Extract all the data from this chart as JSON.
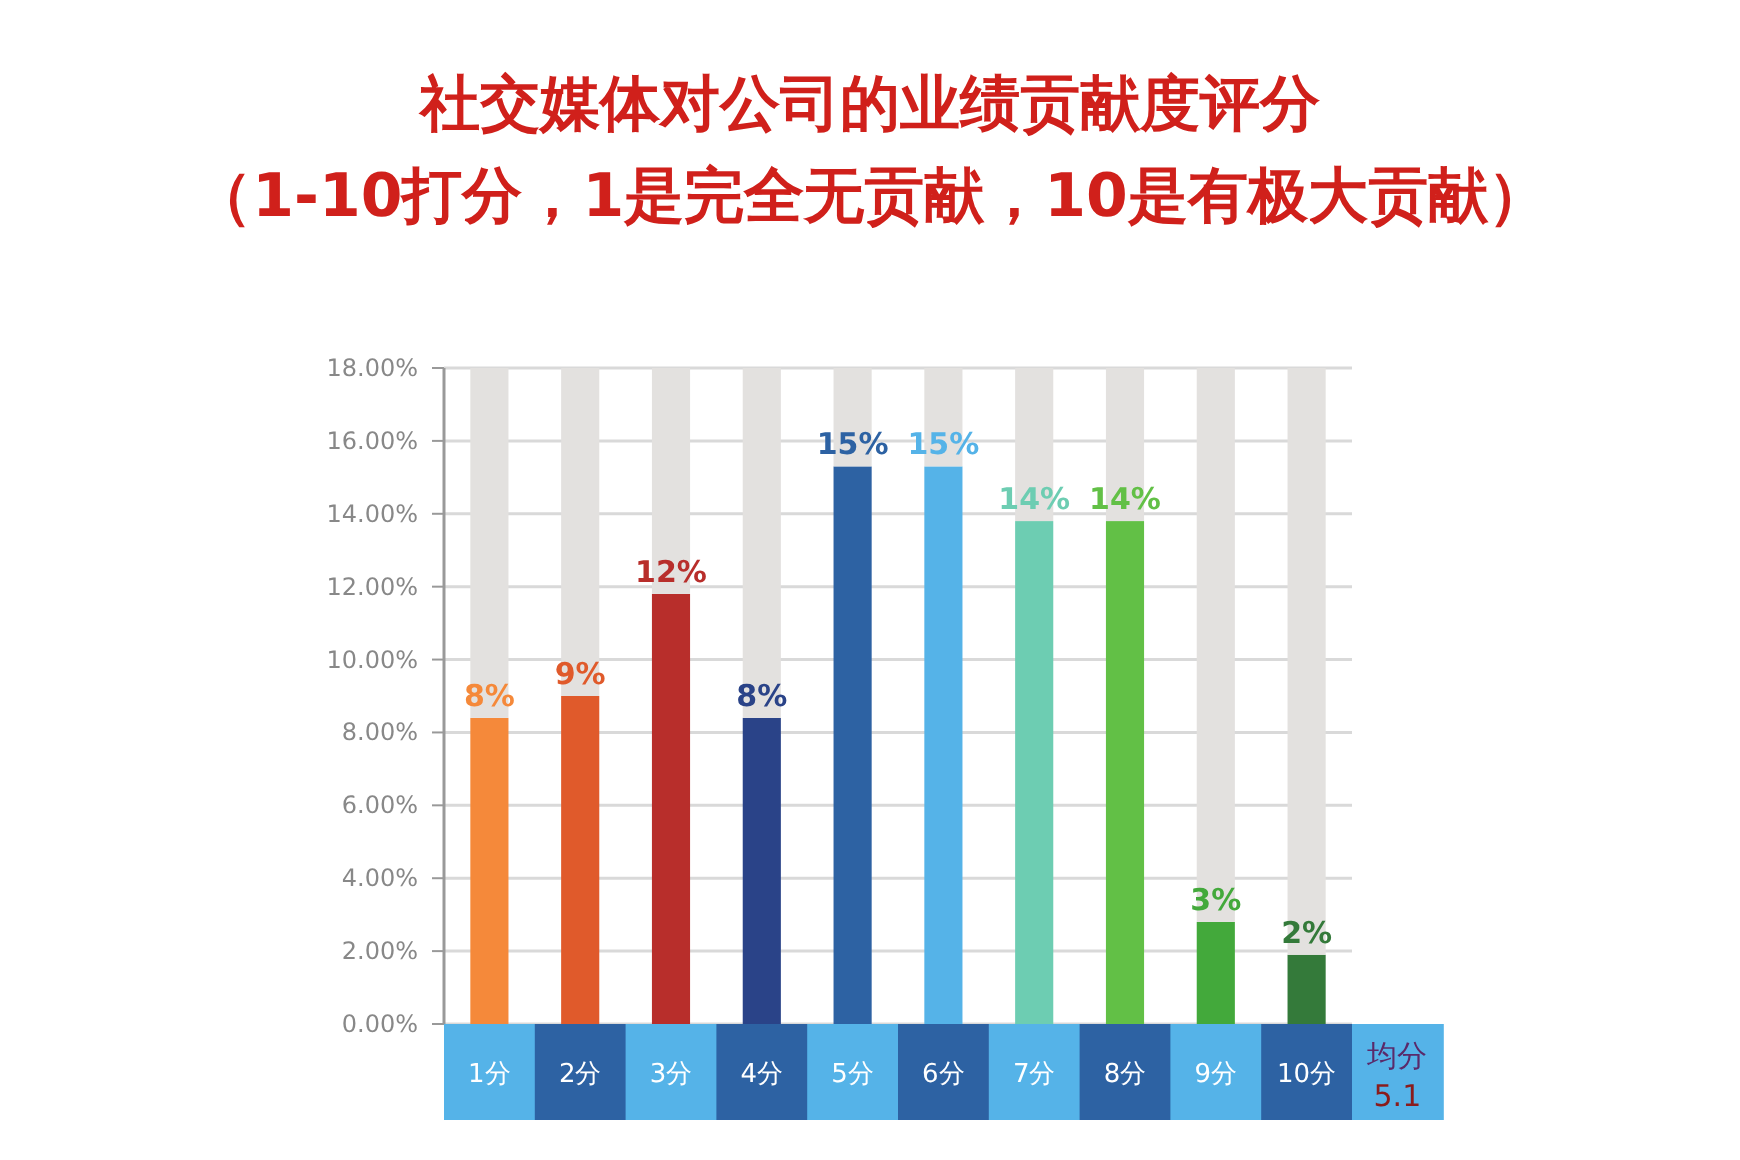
{
  "chart_data": {
    "type": "bar",
    "title": "社交媒体对公司的业绩贡献度评分",
    "subtitle": "（1-10打分，1是完全无贡献，10是有极大贡献）",
    "categories": [
      "1分",
      "2分",
      "3分",
      "4分",
      "5分",
      "6分",
      "7分",
      "8分",
      "9分",
      "10分"
    ],
    "stacked": true,
    "series": [
      {
        "colors": [
          "#f5893a",
          "#e05a2b",
          "#b82e2b",
          "#2a4388",
          "#2d62a3",
          "#55b3e8",
          "#6dcdb2",
          "#62c046",
          "#43a93b",
          "#347a3a"
        ],
        "values": [
          8.4,
          9.0,
          11.8,
          8.4,
          15.3,
          15.3,
          13.8,
          13.8,
          2.8,
          1.9
        ],
        "value_labels": [
          "8%",
          "9%",
          "12%",
          "8%",
          "15%",
          "15%",
          "14%",
          "14%",
          "3%",
          "2%"
        ]
      },
      {
        "color": "#e3e1df",
        "values": [
          9.6,
          9.0,
          6.2,
          9.6,
          2.7,
          2.7,
          4.2,
          4.2,
          15.2,
          16.1
        ]
      }
    ],
    "ylim": [
      0,
      18
    ],
    "yticks": [
      {
        "value": 0,
        "label": "0.00%"
      },
      {
        "value": 2,
        "label": "2.00%"
      },
      {
        "value": 4,
        "label": "4.00%"
      },
      {
        "value": 6,
        "label": "6.00%"
      },
      {
        "value": 8,
        "label": "8.00%"
      },
      {
        "value": 10,
        "label": "10.00%"
      },
      {
        "value": 12,
        "label": "12.00%"
      },
      {
        "value": 14,
        "label": "14.00%"
      },
      {
        "value": 16,
        "label": "16.00%"
      },
      {
        "value": 18,
        "label": "18.00%"
      }
    ],
    "grid": "y",
    "annotations": [
      "均分",
      "5.1"
    ]
  }
}
